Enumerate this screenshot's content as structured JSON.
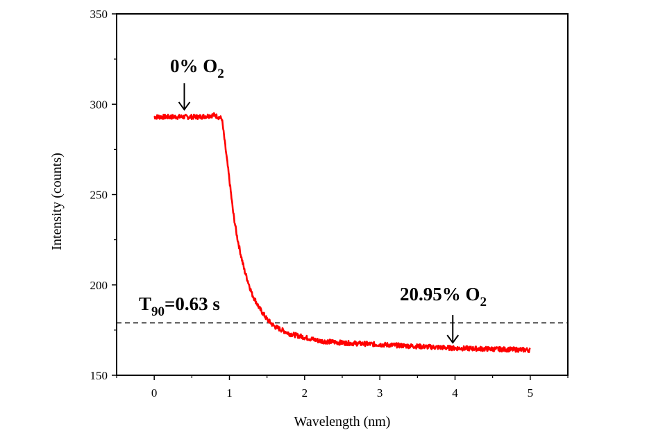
{
  "chart_data": {
    "type": "line",
    "title": "",
    "xlabel": "Wavelength (nm)",
    "ylabel": "Intensity (counts)",
    "xlim": [
      -0.5,
      5.5
    ],
    "ylim": [
      150,
      350
    ],
    "xticks": [
      "0",
      "1",
      "2",
      "3",
      "4",
      "5"
    ],
    "yticks": [
      "150",
      "200",
      "250",
      "300",
      "350"
    ],
    "grid": false,
    "series": [
      {
        "color": "#ff0000",
        "x": [
          0,
          0.2,
          0.4,
          0.6,
          0.8,
          0.9,
          0.95,
          1.0,
          1.05,
          1.1,
          1.15,
          1.2,
          1.3,
          1.4,
          1.5,
          1.6,
          1.7,
          1.8,
          2.0,
          2.2,
          2.5,
          3.0,
          3.5,
          4.0,
          4.5,
          5.0
        ],
        "y": [
          293,
          293,
          293,
          293,
          294,
          292,
          275,
          258,
          240,
          227,
          217,
          208,
          195,
          187,
          181,
          177,
          175,
          173,
          171,
          169,
          168,
          167,
          166,
          165,
          164.5,
          164
        ]
      }
    ],
    "reference_line": {
      "y": 179,
      "style": "dashed",
      "color": "#000000"
    },
    "annotations": [
      {
        "text": "0% O",
        "subscript": "2",
        "arrow_to": {
          "x": 0.4,
          "y": 297
        }
      },
      {
        "text": "20.95% O",
        "subscript": "2",
        "arrow_to": {
          "x": 3.97,
          "y": 168
        }
      },
      {
        "text": "T",
        "subscript": "90",
        "suffix": "=0.63 s"
      }
    ]
  }
}
